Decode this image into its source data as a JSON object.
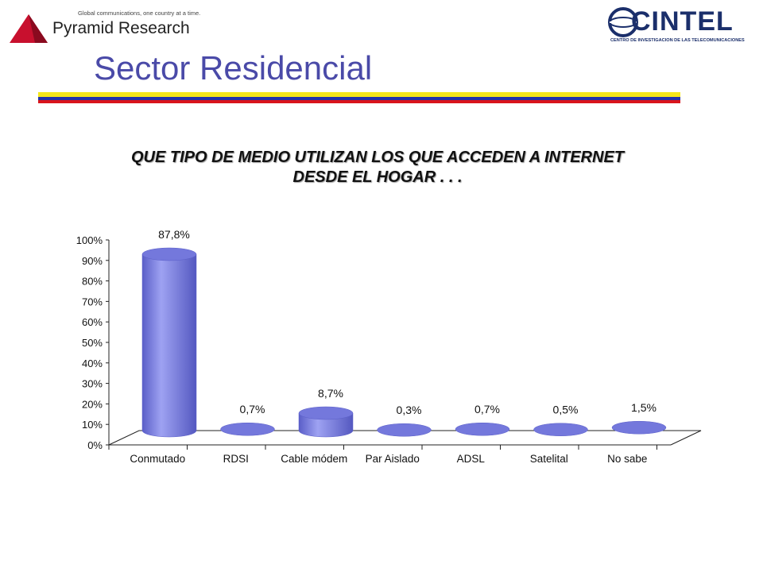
{
  "header": {
    "tagline": "Global communications, one country at a time.",
    "brand": "Pyramid Research",
    "cintel_name": "CINTEL",
    "cintel_sub": "CENTRO DE INVESTIGACION DE LAS TELECOMUNICACIONES"
  },
  "page_title": "Sector Residencial",
  "colors": {
    "flag": [
      "#f5e61a",
      "#2233aa",
      "#d9141c"
    ],
    "bar": "#7a7ee0",
    "title": "#4a4aa8"
  },
  "chart_data": {
    "type": "bar",
    "title_lines": [
      "QUE TIPO DE MEDIO UTILIZAN LOS QUE ACCEDEN A INTERNET",
      "DESDE EL HOGAR . . ."
    ],
    "categories": [
      "Conmutado",
      "RDSI",
      "Cable módem",
      "Par Aislado",
      "ADSL",
      "Satelital",
      "No sabe"
    ],
    "values": [
      87.8,
      0.7,
      8.7,
      0.3,
      0.7,
      0.5,
      1.5
    ],
    "data_labels": [
      "87,8%",
      "0,7%",
      "8,7%",
      "0,3%",
      "0,7%",
      "0,5%",
      "1,5%"
    ],
    "ytick_labels": [
      "0%",
      "10%",
      "20%",
      "30%",
      "40%",
      "50%",
      "60%",
      "70%",
      "80%",
      "90%",
      "100%"
    ],
    "ylim": [
      0,
      100
    ],
    "xlabel": "",
    "ylabel": "",
    "legend": false,
    "style": "3d-cylinder"
  }
}
